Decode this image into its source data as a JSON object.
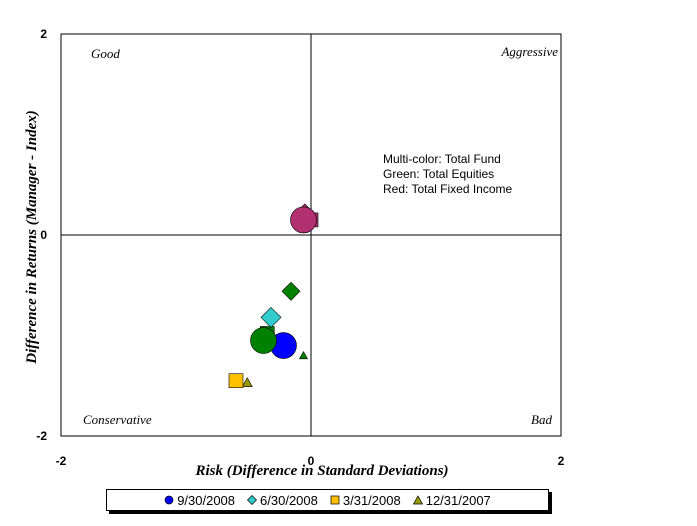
{
  "chart_data": {
    "type": "scatter",
    "title": "",
    "xlabel": "Risk (Difference in Standard Deviations)",
    "ylabel": "Difference in Returns (Manager - Index)",
    "xlim": [
      -2,
      2
    ],
    "ylim": [
      -2,
      2
    ],
    "x_ticks": [
      "-2",
      "0",
      "2"
    ],
    "y_ticks": [
      "2",
      "0",
      "-2"
    ],
    "quadrant_labels": {
      "top_left": "Good",
      "top_right": "Aggressive",
      "bottom_left": "Conservative",
      "bottom_right": "Bad"
    },
    "annotation_lines": [
      "Multi-color: Total Fund",
      "Green: Total Equities",
      "Red: Total Fixed Income"
    ],
    "series": [
      {
        "name": "9/30/2008",
        "marker": "circle",
        "points": [
          {
            "group": "Total Fund",
            "x": -0.22,
            "y": -1.1,
            "color": "#0000ff"
          },
          {
            "group": "Total Equities",
            "x": -0.38,
            "y": -1.05,
            "color": "#008000"
          },
          {
            "group": "Total Fixed Income",
            "x": -0.06,
            "y": 0.15,
            "color": "#b03070"
          }
        ]
      },
      {
        "name": "6/30/2008",
        "marker": "diamond",
        "points": [
          {
            "group": "Total Fund",
            "x": -0.32,
            "y": -0.82,
            "color": "#33cccc"
          },
          {
            "group": "Total Equities",
            "x": -0.16,
            "y": -0.56,
            "color": "#008000"
          },
          {
            "group": "Total Fixed Income",
            "x": -0.05,
            "y": 0.21,
            "color": "#b03070"
          }
        ]
      },
      {
        "name": "3/31/2008",
        "marker": "square",
        "points": [
          {
            "group": "Total Fund",
            "x": -0.6,
            "y": -1.45,
            "color": "#ffc000"
          },
          {
            "group": "Total Equities",
            "x": -0.35,
            "y": -0.98,
            "color": "#008000"
          },
          {
            "group": "Total Fixed Income",
            "x": 0.0,
            "y": 0.15,
            "color": "#b03070"
          }
        ]
      },
      {
        "name": "12/31/2007",
        "marker": "triangle",
        "points": [
          {
            "group": "Total Fund",
            "x": -0.51,
            "y": -1.47,
            "color": "#999900"
          },
          {
            "group": "Total Equities",
            "x": -0.06,
            "y": -1.2,
            "color": "#008000"
          },
          {
            "group": "Total Fixed Income",
            "x": -0.04,
            "y": 0.24,
            "color": "#b03070"
          }
        ]
      }
    ],
    "legend": {
      "placement": "bottom",
      "entries": [
        {
          "label": "9/30/2008",
          "marker": "circle",
          "color": "#0000ff"
        },
        {
          "label": "6/30/2008",
          "marker": "diamond",
          "color": "#33cccc"
        },
        {
          "label": "3/31/2008",
          "marker": "square",
          "color": "#ffc000"
        },
        {
          "label": "12/31/2007",
          "marker": "triangle",
          "color": "#999900"
        }
      ]
    },
    "grid": false
  }
}
